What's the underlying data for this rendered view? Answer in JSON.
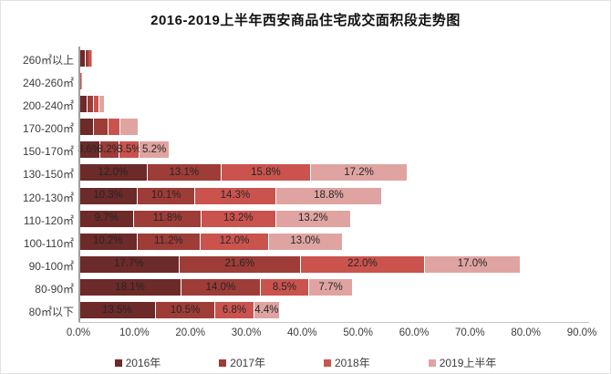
{
  "title": "2016-2019上半年西安商品住宅成交面积段走势图",
  "chart_data": {
    "type": "bar",
    "orientation": "horizontal",
    "stacked": true,
    "title": "2016-2019上半年西安商品住宅成交面积段走势图",
    "categories": [
      "260㎡以上",
      "240-260㎡",
      "200-240㎡",
      "170-200㎡",
      "150-170㎡",
      "130-150㎡",
      "120-130㎡",
      "110-120㎡",
      "100-110㎡",
      "90-100㎡",
      "80-90㎡",
      "80㎡以下"
    ],
    "series": [
      {
        "name": "2016年",
        "color": "#6c2a28",
        "values": [
          0.9,
          0.1,
          1.3,
          2.4,
          3.6,
          12.0,
          10.3,
          9.7,
          10.2,
          17.7,
          18.1,
          13.5
        ]
      },
      {
        "name": "2017年",
        "color": "#9e3c37",
        "values": [
          0.5,
          0.1,
          1.0,
          2.5,
          3.2,
          13.1,
          10.1,
          11.8,
          11.2,
          21.6,
          14.0,
          10.5
        ]
      },
      {
        "name": "2018年",
        "color": "#ca534e",
        "values": [
          0.5,
          0.1,
          0.8,
          2.0,
          3.5,
          15.8,
          14.3,
          13.2,
          12.0,
          22.0,
          8.5,
          6.8
        ]
      },
      {
        "name": "2019上半年",
        "color": "#dfa4a1",
        "values": [
          0.1,
          0.1,
          0.8,
          3.1,
          5.2,
          17.2,
          18.8,
          13.2,
          13.0,
          17.0,
          7.7,
          4.4
        ]
      }
    ],
    "labels_visible_per_category": [
      false,
      false,
      false,
      false,
      true,
      true,
      true,
      true,
      true,
      true,
      true,
      true
    ],
    "data_label_suffix": "%",
    "x_ticks": [
      "0.0%",
      "10.0%",
      "20.0%",
      "30.0%",
      "40.0%",
      "50.0%",
      "60.0%",
      "70.0%",
      "80.0%",
      "90.0%"
    ],
    "xlim": [
      0,
      90
    ],
    "grid": false,
    "legend_position": "bottom",
    "legend": [
      "2016年",
      "2017年",
      "2018年",
      "2019上半年"
    ]
  }
}
